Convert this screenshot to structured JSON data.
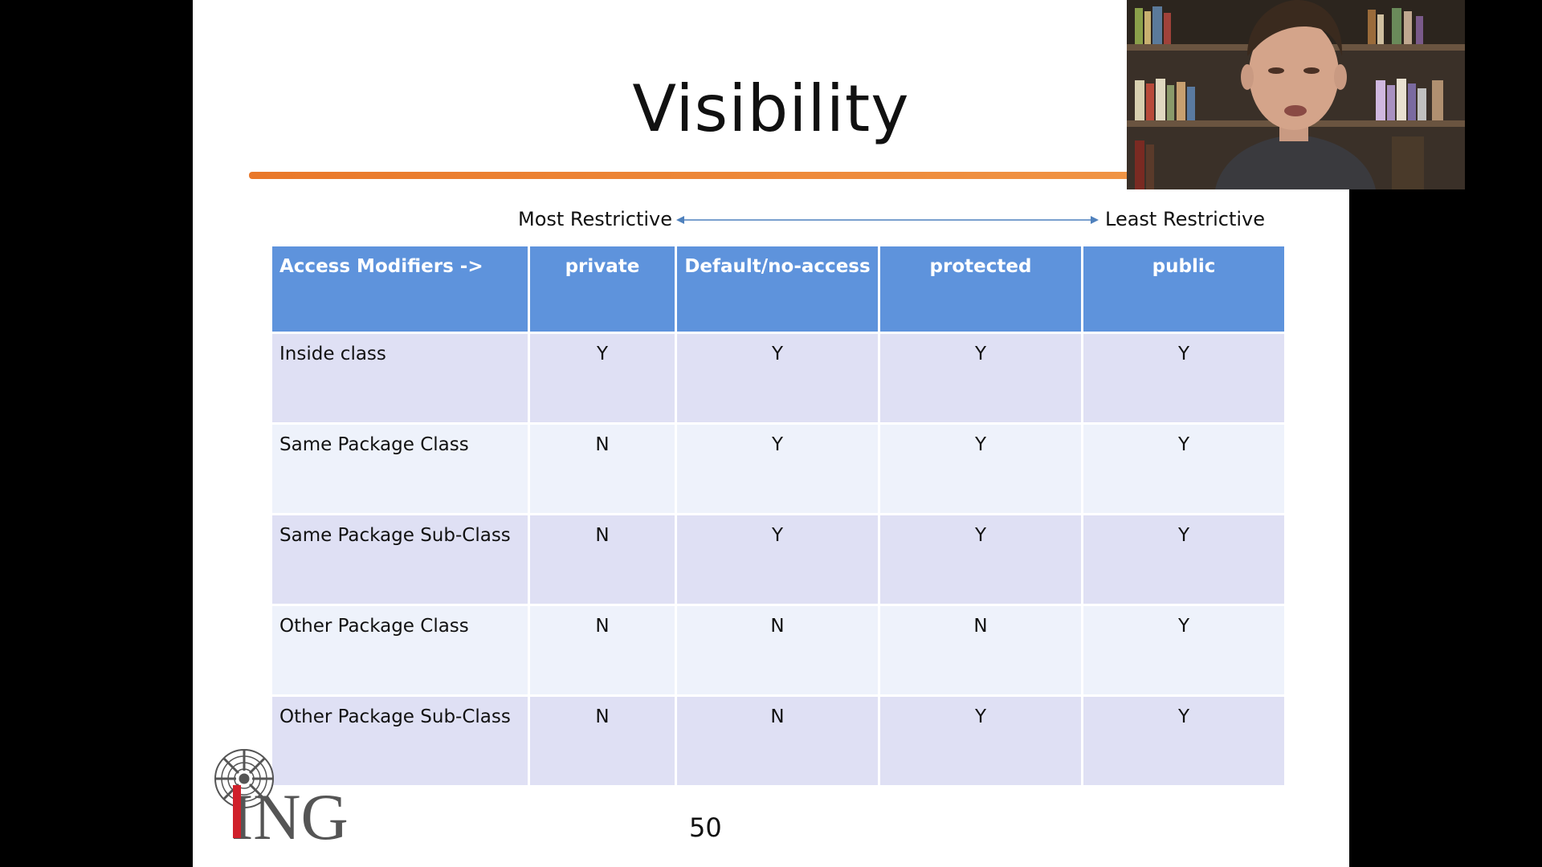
{
  "slide": {
    "title": "Visibility",
    "most_restrictive": "Most Restrictive",
    "least_restrictive": "Least Restrictive",
    "table": {
      "headers": [
        "Access Modifiers ->",
        "private",
        "Default/no-access",
        "protected",
        "public"
      ],
      "rows": [
        [
          "Inside class",
          "Y",
          "Y",
          "Y",
          "Y"
        ],
        [
          "Same Package Class",
          "N",
          "Y",
          "Y",
          "Y"
        ],
        [
          "Same Package Sub-Class",
          "N",
          "Y",
          "Y",
          "Y"
        ],
        [
          "Other Package Class",
          "N",
          "N",
          "N",
          "Y"
        ],
        [
          "Other Package Sub-Class",
          "N",
          "N",
          "Y",
          "Y"
        ]
      ]
    },
    "logo_text": "ING",
    "page_number": "50"
  },
  "colors": {
    "header_bg": "#5e93dc",
    "row_odd": "#dfe0f4",
    "row_even": "#eef2fb",
    "title_rule": "#e9782a",
    "logo_red": "#d0202a",
    "logo_gray": "#555555"
  },
  "webcam": {
    "icon": "presenter-video-icon"
  }
}
